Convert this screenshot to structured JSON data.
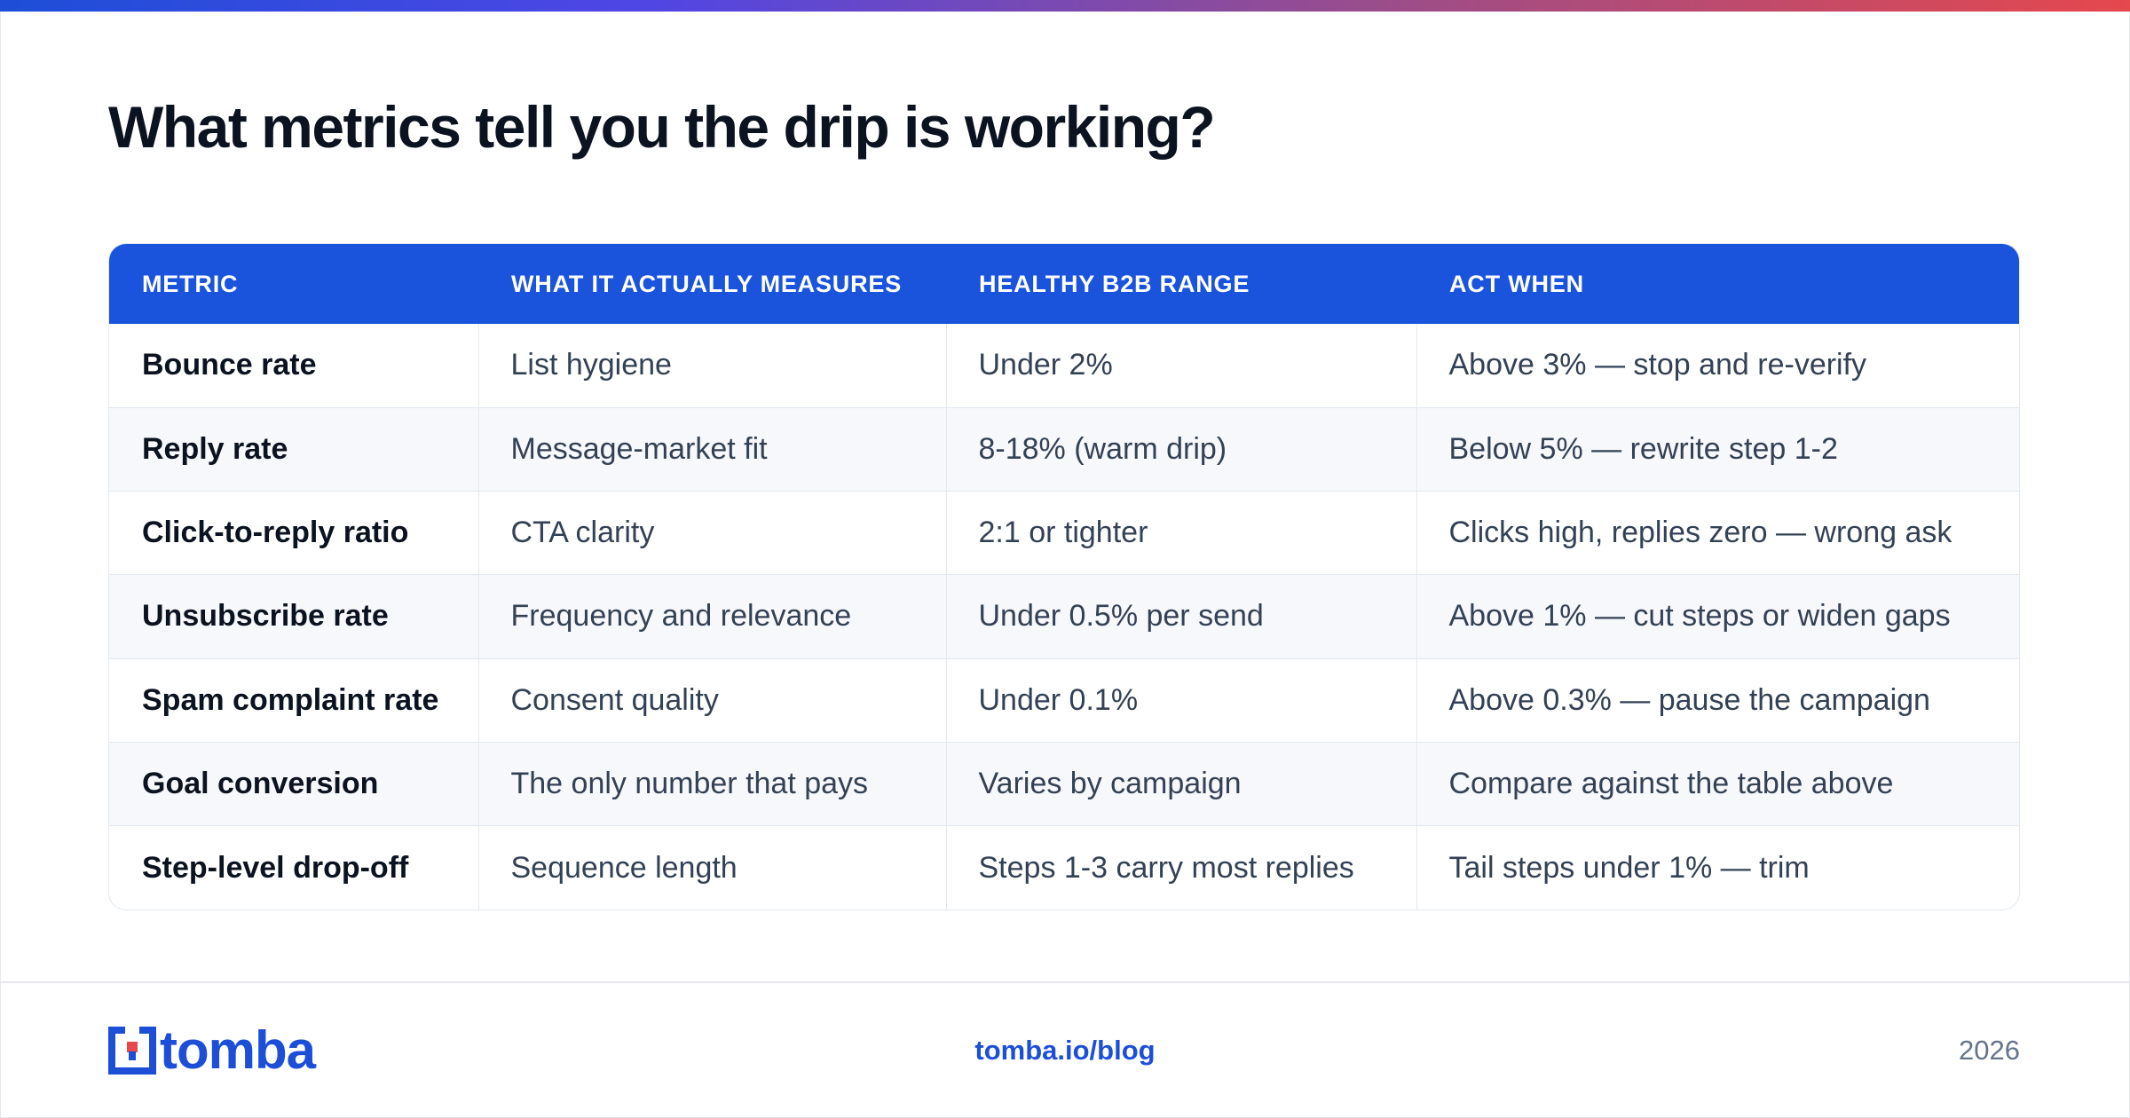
{
  "title": "What metrics tell you the drip is working?",
  "table": {
    "headers": [
      "METRIC",
      "WHAT IT ACTUALLY MEASURES",
      "HEALTHY B2B RANGE",
      "ACT WHEN"
    ],
    "rows": [
      [
        "Bounce rate",
        "List hygiene",
        "Under 2%",
        "Above 3% — stop and re-verify"
      ],
      [
        "Reply rate",
        "Message-market fit",
        "8-18% (warm drip)",
        "Below 5% — rewrite step 1-2"
      ],
      [
        "Click-to-reply ratio",
        "CTA clarity",
        "2:1 or tighter",
        "Clicks high, replies zero — wrong ask"
      ],
      [
        "Unsubscribe rate",
        "Frequency and relevance",
        "Under 0.5% per send",
        "Above 1% — cut steps or widen gaps"
      ],
      [
        "Spam complaint rate",
        "Consent quality",
        "Under 0.1%",
        "Above 0.3% — pause the campaign"
      ],
      [
        "Goal conversion",
        "The only number that pays",
        "Varies by campaign",
        "Compare against the table above"
      ],
      [
        "Step-level drop-off",
        "Sequence length",
        "Steps 1-3 carry most replies",
        "Tail steps under 1% — trim"
      ]
    ]
  },
  "footer": {
    "brand": "tomba",
    "link": "tomba.io/blog",
    "year": "2026"
  },
  "colors": {
    "accent": "#1a53dc",
    "brand": "#1d4ed8",
    "logo_red": "#e5484d",
    "gradient": [
      "#1d4ed8",
      "#4f46e5",
      "#9b4d8a",
      "#e5484d"
    ]
  }
}
